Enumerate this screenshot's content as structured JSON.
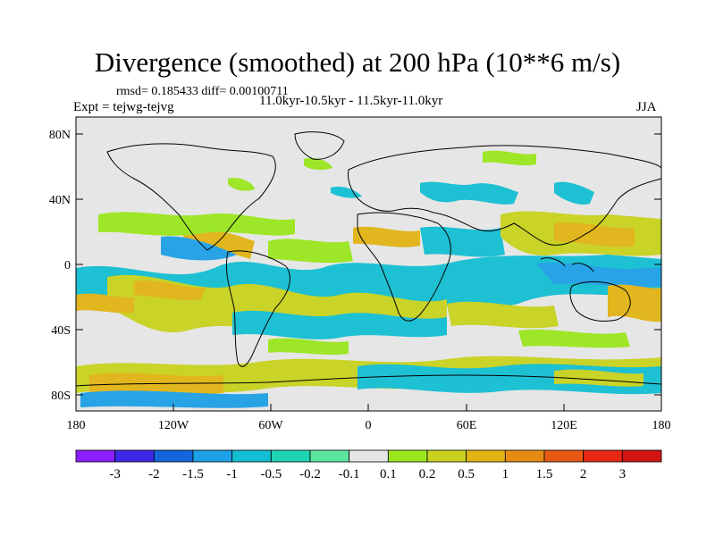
{
  "title": "Divergence (smoothed) at 200 hPa (10**6 m/s)",
  "stats": "rmsd= 0.185433 diff= 0.00100711",
  "period": "11.0kyr-10.5kyr - 11.5kyr-11.0kyr",
  "expt": "Expt = tejwg-tejvg",
  "season": "JJA",
  "lat_labels": [
    "80N",
    "40N",
    "0",
    "40S",
    "80S"
  ],
  "lon_labels": [
    "180",
    "120W",
    "60W",
    "0",
    "60E",
    "120E",
    "180"
  ],
  "colorbar": {
    "labels": [
      "-3",
      "-2",
      "-1.5",
      "-1",
      "-0.5",
      "-0.2",
      "-0.1",
      "0.1",
      "0.2",
      "0.5",
      "1",
      "1.5",
      "2",
      "3"
    ],
    "colors": [
      "#8c1eff",
      "#3c28e6",
      "#1464dc",
      "#1ea0e6",
      "#14bed2",
      "#1ed2b4",
      "#5ae6a0",
      "#e6e6e6",
      "#9be61e",
      "#c8d21e",
      "#e1b414",
      "#e68c14",
      "#e65a14",
      "#e62814",
      "#d21414"
    ]
  },
  "map_colors": {
    "background": "#e6e6e6",
    "coast": "#000000"
  }
}
